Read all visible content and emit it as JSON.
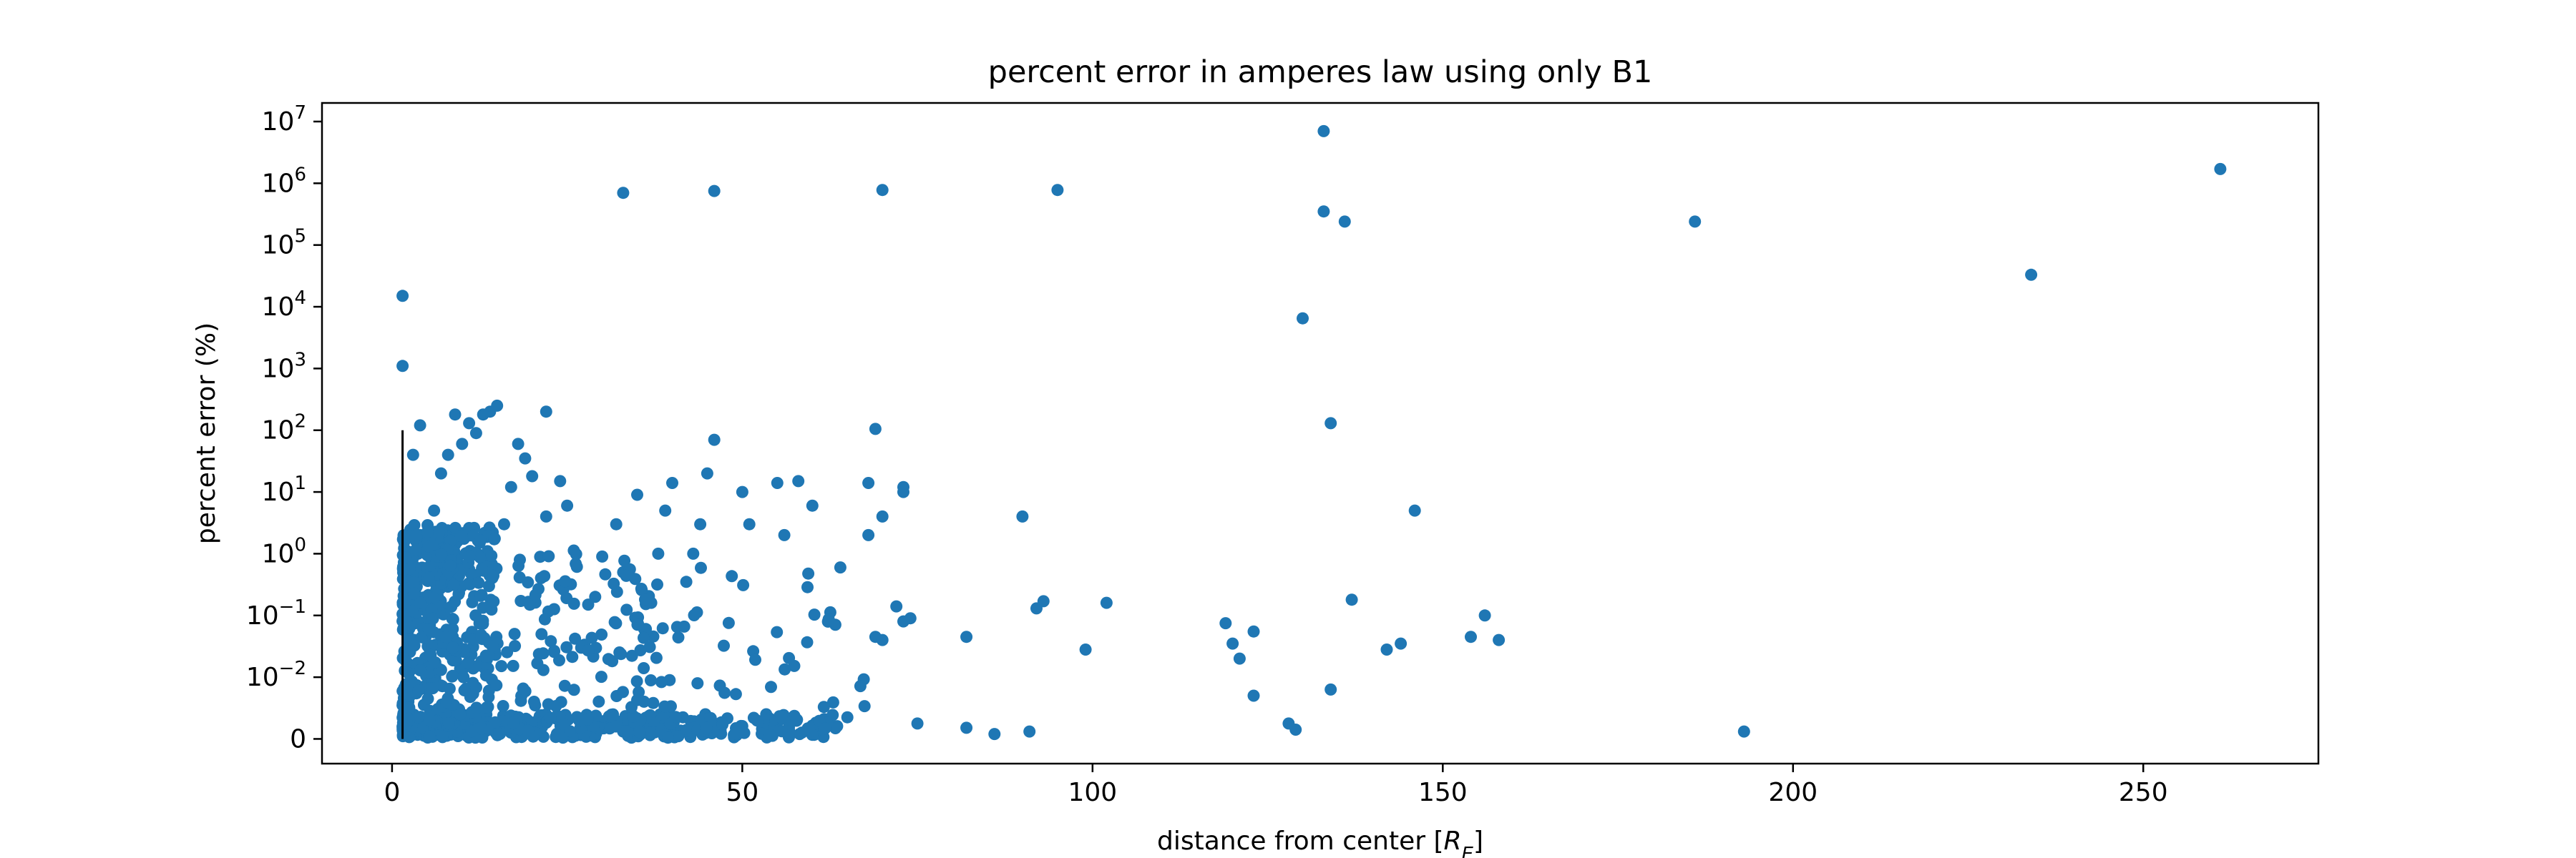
{
  "chart_data": {
    "type": "scatter",
    "title": "percent error in amperes law using only B1",
    "xlabel": "distance from center [",
    "xlabel_sub": "R",
    "xlabel_subscript": "E",
    "xlabel_end": "]",
    "ylabel": "percent error (%)",
    "xlim": [
      -10,
      275
    ],
    "y_scale": "symlog",
    "y_linthresh": 0.01,
    "ylim": [
      -0.004,
      20000000
    ],
    "grid": false,
    "color": "#1f77b4",
    "x_ticks": [
      0,
      50,
      100,
      150,
      200,
      250
    ],
    "x_tick_labels": [
      "0",
      "50",
      "100",
      "150",
      "200",
      "250"
    ],
    "y_ticks": [
      0,
      0.01,
      0.1,
      1,
      10,
      100,
      1000,
      10000,
      100000,
      1000000,
      10000000
    ],
    "y_tick_labels": [
      {
        "base": "0",
        "exp": ""
      },
      {
        "base": "10",
        "exp": "−2"
      },
      {
        "base": "10",
        "exp": "−1"
      },
      {
        "base": "10",
        "exp": "0"
      },
      {
        "base": "10",
        "exp": "1"
      },
      {
        "base": "10",
        "exp": "2"
      },
      {
        "base": "10",
        "exp": "3"
      },
      {
        "base": "10",
        "exp": "4"
      },
      {
        "base": "10",
        "exp": "5"
      },
      {
        "base": "10",
        "exp": "6"
      },
      {
        "base": "10",
        "exp": "7"
      }
    ],
    "vertical_line": {
      "x": 1.5,
      "y0": 0,
      "y1": 100
    },
    "points": [
      [
        1.5,
        15000
      ],
      [
        1.5,
        1100
      ],
      [
        33,
        700000
      ],
      [
        46,
        750000
      ],
      [
        70,
        780000
      ],
      [
        95,
        780000
      ],
      [
        133,
        7000000
      ],
      [
        133,
        350000
      ],
      [
        136,
        240000
      ],
      [
        186,
        240000
      ],
      [
        261,
        1700000
      ],
      [
        234,
        33000
      ],
      [
        130,
        6500
      ],
      [
        134,
        130
      ],
      [
        146,
        5
      ],
      [
        193,
        0.0012
      ],
      [
        128,
        0.0025
      ],
      [
        129,
        0.0015
      ],
      [
        123,
        0.055
      ],
      [
        120,
        0.035
      ],
      [
        119,
        0.075
      ],
      [
        121,
        0.02
      ],
      [
        123,
        0.007
      ],
      [
        134,
        0.008
      ],
      [
        137,
        0.18
      ],
      [
        142,
        0.028
      ],
      [
        144,
        0.035
      ],
      [
        154,
        0.045
      ],
      [
        156,
        0.1
      ],
      [
        158,
        0.04
      ],
      [
        99,
        0.028
      ],
      [
        102,
        0.16
      ],
      [
        92,
        0.13
      ],
      [
        93,
        0.17
      ],
      [
        90,
        4
      ],
      [
        82,
        0.045
      ],
      [
        82,
        0.0018
      ],
      [
        86,
        0.0008
      ],
      [
        91,
        0.0012
      ],
      [
        75,
        0.0025
      ],
      [
        74,
        0.09
      ],
      [
        73,
        0.08
      ],
      [
        72,
        0.14
      ],
      [
        73,
        10
      ],
      [
        73,
        12
      ],
      [
        69,
        105
      ],
      [
        68,
        14
      ],
      [
        70,
        4
      ],
      [
        68,
        2
      ],
      [
        69,
        0.045
      ],
      [
        70,
        0.04
      ],
      [
        64,
        0.6
      ],
      [
        65,
        0.0035
      ],
      [
        60,
        6
      ],
      [
        58,
        15
      ],
      [
        55,
        14
      ],
      [
        56,
        2
      ],
      [
        51,
        3
      ],
      [
        50,
        10
      ],
      [
        46,
        70
      ],
      [
        45,
        20
      ],
      [
        44,
        3
      ],
      [
        43,
        1
      ],
      [
        42,
        0.35
      ],
      [
        40,
        14
      ],
      [
        39,
        5
      ],
      [
        38,
        1
      ],
      [
        37,
        0.16
      ],
      [
        36,
        0.06
      ],
      [
        35,
        9
      ],
      [
        32,
        3
      ],
      [
        33,
        0.5
      ],
      [
        30,
        0.9
      ],
      [
        29,
        0.2
      ],
      [
        28,
        0.15
      ],
      [
        27,
        0.03
      ],
      [
        25,
        6
      ],
      [
        24,
        15
      ],
      [
        22,
        4
      ],
      [
        22,
        200
      ],
      [
        20,
        18
      ],
      [
        19,
        35
      ],
      [
        18,
        60
      ],
      [
        17,
        12
      ],
      [
        16,
        3
      ],
      [
        15,
        250
      ],
      [
        14,
        200
      ],
      [
        13,
        180
      ],
      [
        12,
        90
      ],
      [
        11,
        130
      ],
      [
        10,
        60
      ],
      [
        9,
        180
      ],
      [
        8,
        40
      ],
      [
        7,
        20
      ],
      [
        6,
        5
      ],
      [
        5,
        0.5
      ],
      [
        4,
        2
      ],
      [
        3,
        40
      ],
      [
        4,
        120
      ],
      [
        2.5,
        0.3
      ],
      [
        2,
        0.15
      ]
    ],
    "dense_clusters": [
      {
        "x_range": [
          1.5,
          64
        ],
        "y_range": [
          0.0002,
          0.004
        ],
        "count": 420
      },
      {
        "x_range": [
          1.5,
          15
        ],
        "y_range": [
          0.002,
          3
        ],
        "count": 260
      },
      {
        "x_range": [
          1.5,
          35
        ],
        "y_range": [
          0.005,
          1.2
        ],
        "count": 180
      },
      {
        "x_range": [
          5,
          15
        ],
        "y_range": [
          0.3,
          3
        ],
        "count": 90
      },
      {
        "x_range": [
          35,
          68
        ],
        "y_range": [
          0.003,
          0.6
        ],
        "count": 60
      }
    ]
  }
}
